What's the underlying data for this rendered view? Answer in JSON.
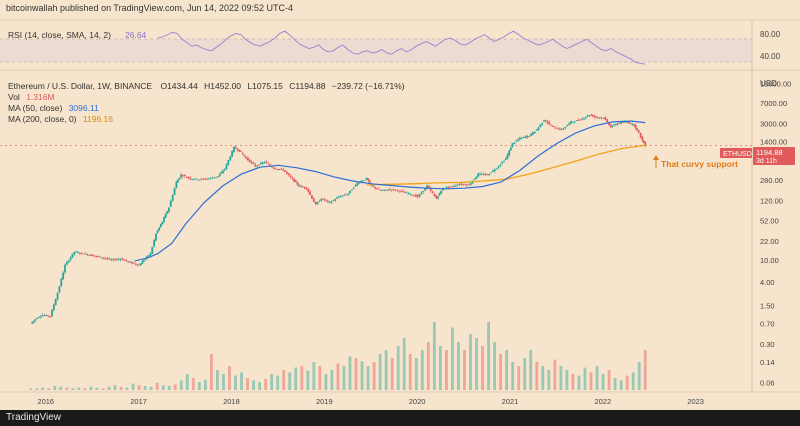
{
  "publisher_line": "bitcoinwallah published on TradingView.com, Jun 14, 2022 09:52 UTC-4",
  "footer_logo": "TradingView",
  "currency": "USD",
  "colors": {
    "background": "#f7e4cc",
    "up": "#26a69a",
    "down": "#e05a5a",
    "ma50": "#2d6fd6",
    "ma200": "#f2a31b",
    "rsi": "#9a7fd1",
    "price_badge": "#e05a5a",
    "annotation": "#e07b1a"
  },
  "rsi_panel": {
    "label": "RSI (14, close, SMA, 14, 2)",
    "value": "26.64",
    "value2": "",
    "ticks": [
      "80.00",
      "40.00"
    ]
  },
  "legend": {
    "title": "Ethereum / U.S. Dollar, 1W, BINANCE",
    "open": "O1434.44",
    "high": "H1452.00",
    "low": "L1075.15",
    "close": "C1194.88",
    "change": "−239.72 (−16.71%)",
    "vol_label": "Vol",
    "vol_value": "1.316M",
    "ma50_label": "MA (50, close)",
    "ma50_value": "3096.11",
    "ma200_label": "MA (200, close, 0)",
    "ma200_value": "1196.16"
  },
  "price_badge": {
    "symbol": "ETHUSD",
    "price": "1194.88",
    "countdown": "3d 11h"
  },
  "annotation": "That curvy support",
  "chart_data": {
    "type": "line",
    "scale": "log",
    "x_ticks": [
      "2016",
      "2017",
      "2018",
      "2019",
      "2020",
      "2021",
      "2022",
      "2023"
    ],
    "y_ticks": [
      "16000.00",
      "7000.00",
      "3000.00",
      "1400.00",
      "600.00",
      "280.00",
      "120.00",
      "52.00",
      "22.00",
      "10.00",
      "4.00",
      "1.50",
      "0.70",
      "0.30",
      "0.14",
      "0.06"
    ],
    "ylim": [
      0.04,
      20000
    ],
    "xlim": [
      2015.5,
      2023.6
    ],
    "series": [
      {
        "key": "price",
        "x": [
          2015.83,
          2015.9,
          2015.96,
          2016.04,
          2016.12,
          2016.2,
          2016.3,
          2016.4,
          2016.5,
          2016.6,
          2016.7,
          2016.8,
          2016.9,
          2017.0,
          2017.05,
          2017.12,
          2017.18,
          2017.25,
          2017.32,
          2017.4,
          2017.45,
          2017.55,
          2017.65,
          2017.75,
          2017.85,
          2017.92,
          2018.02,
          2018.08,
          2018.15,
          2018.25,
          2018.35,
          2018.45,
          2018.55,
          2018.65,
          2018.72,
          2018.8,
          2018.9,
          2018.96,
          2019.05,
          2019.15,
          2019.25,
          2019.35,
          2019.45,
          2019.5,
          2019.6,
          2019.7,
          2019.8,
          2019.9,
          2020.0,
          2020.1,
          2020.2,
          2020.27,
          2020.35,
          2020.45,
          2020.55,
          2020.65,
          2020.75,
          2020.85,
          2020.95,
          2021.02,
          2021.1,
          2021.2,
          2021.28,
          2021.36,
          2021.45,
          2021.55,
          2021.65,
          2021.75,
          2021.85,
          2021.92,
          2022.0,
          2022.08,
          2022.15,
          2022.25,
          2022.33,
          2022.38,
          2022.42,
          2022.45
        ],
        "y": [
          0.7,
          0.9,
          1.0,
          0.95,
          2.5,
          8,
          14,
          13,
          12,
          11,
          10,
          10.5,
          9,
          8,
          10,
          13,
          30,
          50,
          90,
          260,
          350,
          300,
          290,
          300,
          330,
          450,
          1100,
          950,
          700,
          500,
          600,
          460,
          430,
          290,
          220,
          200,
          100,
          130,
          110,
          140,
          160,
          250,
          300,
          220,
          180,
          190,
          180,
          160,
          140,
          220,
          130,
          200,
          210,
          240,
          230,
          360,
          350,
          470,
          700,
          1300,
          1600,
          1800,
          2300,
          3500,
          2600,
          2300,
          3200,
          3500,
          4300,
          3900,
          3800,
          2600,
          3000,
          3200,
          2800,
          2000,
          1450,
          1194.88
        ]
      },
      {
        "key": "ma50",
        "name": "MA (50, close)",
        "x": [
          2016.95,
          2017.1,
          2017.2,
          2017.35,
          2017.5,
          2017.7,
          2017.9,
          2018.1,
          2018.3,
          2018.5,
          2018.7,
          2018.9,
          2019.1,
          2019.3,
          2019.5,
          2019.7,
          2019.9,
          2020.1,
          2020.3,
          2020.5,
          2020.7,
          2020.9,
          2021.1,
          2021.3,
          2021.5,
          2021.7,
          2021.9,
          2022.1,
          2022.3,
          2022.45
        ],
        "y": [
          9.5,
          11,
          13,
          20,
          45,
          110,
          220,
          360,
          480,
          520,
          470,
          400,
          320,
          270,
          240,
          225,
          210,
          200,
          195,
          200,
          215,
          260,
          420,
          780,
          1300,
          2000,
          2700,
          3200,
          3300,
          3096.11
        ]
      },
      {
        "key": "ma200",
        "name": "MA (200, close, 0)",
        "x": [
          2019.45,
          2019.7,
          2019.95,
          2020.2,
          2020.45,
          2020.7,
          2020.95,
          2021.2,
          2021.45,
          2021.7,
          2021.95,
          2022.2,
          2022.45
        ],
        "y": [
          230,
          235,
          240,
          250,
          255,
          270,
          290,
          360,
          470,
          620,
          830,
          1050,
          1196.16
        ]
      }
    ],
    "volume_relative": [
      0.02,
      0.02,
      0.03,
      0.02,
      0.05,
      0.04,
      0.03,
      0.02,
      0.03,
      0.02,
      0.04,
      0.03,
      0.02,
      0.04,
      0.06,
      0.04,
      0.03,
      0.08,
      0.06,
      0.05,
      0.04,
      0.09,
      0.06,
      0.05,
      0.07,
      0.12,
      0.2,
      0.15,
      0.1,
      0.13,
      0.45,
      0.25,
      0.2,
      0.3,
      0.18,
      0.22,
      0.15,
      0.12,
      0.1,
      0.14,
      0.2,
      0.18,
      0.25,
      0.22,
      0.28,
      0.3,
      0.24,
      0.35,
      0.3,
      0.2,
      0.25,
      0.33,
      0.3,
      0.42,
      0.4,
      0.36,
      0.3,
      0.35,
      0.45,
      0.5,
      0.4,
      0.55,
      0.65,
      0.45,
      0.4,
      0.5,
      0.6,
      0.85,
      0.55,
      0.5,
      0.78,
      0.6,
      0.5,
      0.7,
      0.65,
      0.55,
      0.85,
      0.6,
      0.45,
      0.5,
      0.35,
      0.3,
      0.4,
      0.5,
      0.35,
      0.3,
      0.25,
      0.38,
      0.3,
      0.25,
      0.2,
      0.18,
      0.28,
      0.22,
      0.3,
      0.2,
      0.25,
      0.15,
      0.12,
      0.18,
      0.22,
      0.35,
      0.5
    ],
    "rsi_values": [
      72,
      74,
      78,
      82,
      80,
      70,
      64,
      58,
      60,
      55,
      52,
      50,
      56,
      62,
      70,
      76,
      80,
      78,
      70,
      64,
      60,
      58,
      62,
      66,
      72,
      80,
      84,
      78,
      70,
      62,
      58,
      54,
      56,
      60,
      52,
      48,
      50,
      56,
      60,
      52,
      46,
      44,
      48,
      50,
      46,
      48,
      52,
      46,
      44,
      50,
      54,
      48,
      52,
      58,
      62,
      66,
      62,
      58,
      64,
      70,
      72,
      68,
      62,
      60,
      64,
      70,
      74,
      78,
      72,
      66,
      70,
      74,
      80,
      84,
      78,
      72,
      68,
      64,
      60,
      62,
      66,
      70,
      64,
      58,
      54,
      58,
      62,
      66,
      70,
      64,
      58,
      52,
      50,
      54,
      48,
      44,
      40,
      36,
      30,
      28,
      26.64
    ],
    "rsi_ylim": [
      20,
      100
    ]
  }
}
